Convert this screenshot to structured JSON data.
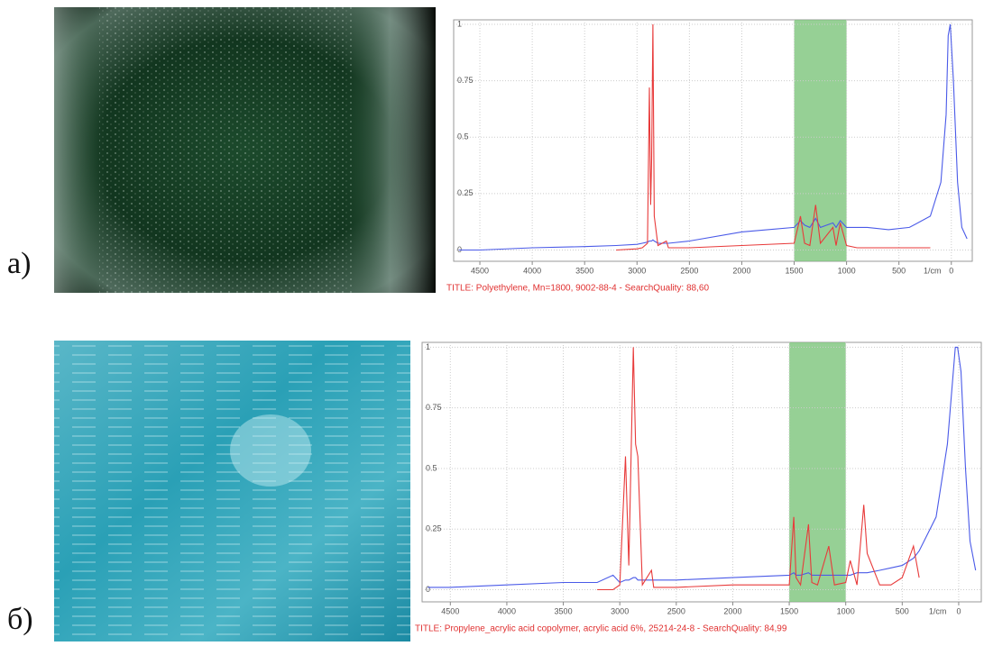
{
  "chart_data": [
    {
      "type": "line",
      "label": "а)",
      "title": "TITLE: Polyethylene, Mn=1800, 9002-88-4 - SearchQuality: 88,60",
      "x_unit": "1/cm",
      "x": [
        4700,
        4500,
        4000,
        3500,
        3200,
        3000,
        2950,
        2900,
        2882,
        2870,
        2860,
        2848,
        2835,
        2800,
        2720,
        2700,
        2500,
        2000,
        1500,
        1440,
        1400,
        1350,
        1295,
        1250,
        1130,
        1100,
        1060,
        1000,
        900,
        800,
        600,
        400,
        200,
        100,
        50,
        30,
        10,
        -20,
        -60,
        -100,
        -150
      ],
      "series": [
        {
          "color": "#4a5ae8",
          "values": [
            0.0,
            0.0,
            0.01,
            0.015,
            0.02,
            0.025,
            0.03,
            0.035,
            0.04,
            0.04,
            0.04,
            0.045,
            0.04,
            0.03,
            0.03,
            0.03,
            0.04,
            0.08,
            0.1,
            0.13,
            0.11,
            0.1,
            0.14,
            0.1,
            0.12,
            0.1,
            0.13,
            0.1,
            0.1,
            0.1,
            0.09,
            0.1,
            0.15,
            0.3,
            0.6,
            0.95,
            1.0,
            0.75,
            0.3,
            0.1,
            0.05
          ]
        },
        {
          "color": "#e83a3a",
          "values": [
            null,
            null,
            null,
            null,
            0.0,
            0.005,
            0.01,
            0.03,
            0.72,
            0.2,
            0.4,
            1.0,
            0.15,
            0.02,
            0.04,
            0.01,
            0.01,
            0.02,
            0.03,
            0.15,
            0.03,
            0.02,
            0.2,
            0.03,
            0.1,
            0.02,
            0.12,
            0.02,
            0.01,
            0.01,
            0.01,
            0.01,
            0.01,
            null,
            null,
            null,
            null,
            null,
            null,
            null,
            null
          ]
        }
      ],
      "highlight": [
        1500,
        1000
      ],
      "highlight_color": "#7cc47a",
      "xlim": [
        4750,
        -200
      ],
      "ylim": [
        -0.05,
        1.02
      ],
      "xticks": [
        4500,
        4000,
        3500,
        3000,
        2500,
        2000,
        1500,
        1000,
        500,
        0
      ],
      "yticks": [
        0,
        0.25,
        0.5,
        0.75,
        1
      ],
      "grid": true
    },
    {
      "type": "line",
      "label": "б)",
      "title": "TITLE: Propylene_acrylic acid copolymer, acrylic acid 6%, 25214-24-8 - SearchQuality: 84,99",
      "x_unit": "1/cm",
      "x": [
        4700,
        4500,
        4000,
        3500,
        3200,
        3060,
        3000,
        2950,
        2920,
        2880,
        2860,
        2840,
        2800,
        2720,
        2700,
        2500,
        2000,
        1500,
        1460,
        1440,
        1400,
        1330,
        1300,
        1250,
        1150,
        1100,
        1000,
        960,
        900,
        840,
        810,
        700,
        600,
        500,
        400,
        350,
        200,
        100,
        30,
        10,
        -20,
        -60,
        -100,
        -150
      ],
      "series": [
        {
          "color": "#4a5ae8",
          "values": [
            0.01,
            0.01,
            0.02,
            0.03,
            0.03,
            0.06,
            0.03,
            0.04,
            0.04,
            0.05,
            0.05,
            0.04,
            0.04,
            0.04,
            0.04,
            0.04,
            0.05,
            0.06,
            0.07,
            0.06,
            0.06,
            0.07,
            0.06,
            0.06,
            0.06,
            0.06,
            0.06,
            0.06,
            0.07,
            0.07,
            0.07,
            0.08,
            0.09,
            0.1,
            0.13,
            0.16,
            0.3,
            0.6,
            1.0,
            1.0,
            0.9,
            0.5,
            0.2,
            0.08
          ]
        },
        {
          "color": "#e83a3a",
          "values": [
            null,
            null,
            null,
            null,
            0.0,
            0.0,
            0.02,
            0.55,
            0.1,
            1.0,
            0.6,
            0.55,
            0.02,
            0.08,
            0.01,
            0.01,
            0.02,
            0.02,
            0.3,
            0.05,
            0.02,
            0.27,
            0.03,
            0.02,
            0.18,
            0.02,
            0.03,
            0.12,
            0.02,
            0.35,
            0.15,
            0.02,
            0.02,
            0.05,
            0.18,
            0.05,
            null,
            null,
            null,
            null,
            null,
            null,
            null,
            null
          ]
        }
      ],
      "highlight": [
        1500,
        1000
      ],
      "highlight_color": "#7cc47a",
      "xlim": [
        4750,
        -200
      ],
      "ylim": [
        -0.05,
        1.02
      ],
      "xticks": [
        4500,
        4000,
        3500,
        3000,
        2500,
        2000,
        1500,
        1000,
        500,
        0
      ],
      "yticks": [
        0,
        0.25,
        0.5,
        0.75,
        1
      ],
      "grid": true
    }
  ]
}
